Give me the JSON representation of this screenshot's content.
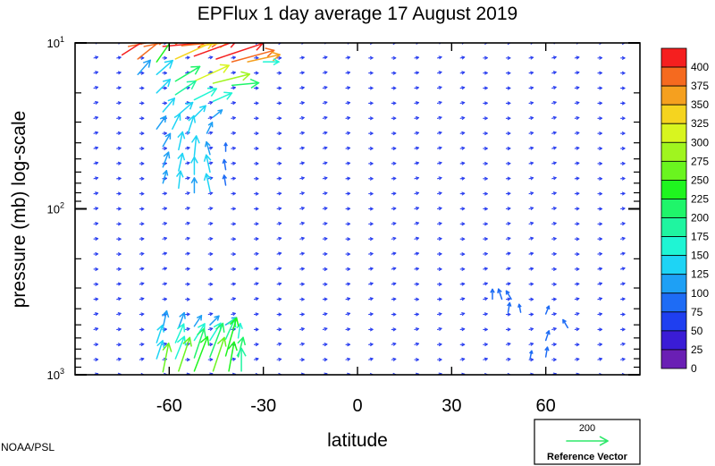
{
  "chart_data": {
    "type": "vector-field",
    "title": "EPFlux  1 day average  17 August    2019",
    "xlabel": "latitude",
    "ylabel": "pressure (mb)  log-scale",
    "x_ticks": [
      {
        "value": -60,
        "label": "-60"
      },
      {
        "value": -30,
        "label": "-30"
      },
      {
        "value": 0,
        "label": "0"
      },
      {
        "value": 30,
        "label": "30"
      },
      {
        "value": 60,
        "label": "60"
      }
    ],
    "y_ticks": [
      {
        "value": 10,
        "base": "10",
        "exp": "1"
      },
      {
        "value": 100,
        "base": "10",
        "exp": "2"
      },
      {
        "value": 1000,
        "base": "10",
        "exp": "3"
      }
    ],
    "xlim": [
      -90,
      90
    ],
    "ylim": [
      1000,
      10
    ],
    "y_scale": "log",
    "colorbar": {
      "levels": [
        0,
        25,
        50,
        75,
        100,
        125,
        150,
        175,
        200,
        225,
        250,
        275,
        300,
        325,
        350,
        375,
        400
      ],
      "labels": [
        "400",
        "375",
        "350",
        "325",
        "300",
        "275",
        "250",
        "225",
        "200",
        "175",
        "150",
        "125",
        "100",
        "75",
        "50",
        "25",
        "0"
      ],
      "colors": [
        "#6a1fb4",
        "#3a1cd6",
        "#1f3ff0",
        "#1e6cf5",
        "#1ea0f5",
        "#1ed4f5",
        "#1ff5d4",
        "#1ff5a0",
        "#1ff56a",
        "#1ff51f",
        "#6af51f",
        "#a0f51f",
        "#d8f51f",
        "#f5d41f",
        "#f5a01f",
        "#f56a1f",
        "#f51f1f"
      ]
    },
    "reference_vector": {
      "magnitude": "200",
      "label": "Reference Vector",
      "color": "#2ee86a"
    },
    "credit": "NOAA/PSL",
    "vectors": [
      {
        "lat": -73,
        "p": 10.5,
        "u": 0.5,
        "v": 0.1,
        "mag": 390
      },
      {
        "lat": -68,
        "p": 10.5,
        "u": 0.5,
        "v": 0.1,
        "mag": 395
      },
      {
        "lat": -62,
        "p": 10.5,
        "u": 0.55,
        "v": 0.05,
        "mag": 400
      },
      {
        "lat": -56,
        "p": 10.4,
        "u": 0.5,
        "v": 0.05,
        "mag": 385
      },
      {
        "lat": -50,
        "p": 10.4,
        "u": 0.4,
        "v": 0.05,
        "mag": 330
      },
      {
        "lat": -75,
        "p": 11.8,
        "u": 0.55,
        "v": 0.35,
        "mag": 400
      },
      {
        "lat": -70,
        "p": 12.5,
        "u": 0.5,
        "v": 0.4,
        "mag": 380
      },
      {
        "lat": -64,
        "p": 13.0,
        "u": 0.35,
        "v": 0.5,
        "mag": 240
      },
      {
        "lat": -58,
        "p": 12.5,
        "u": 0.55,
        "v": 0.25,
        "mag": 345
      },
      {
        "lat": -52,
        "p": 12.0,
        "u": 0.55,
        "v": 0.2,
        "mag": 400
      },
      {
        "lat": -45,
        "p": 12.5,
        "u": 0.6,
        "v": 0.2,
        "mag": 400
      },
      {
        "lat": -40,
        "p": 13.0,
        "u": 0.55,
        "v": 0.15,
        "mag": 395
      },
      {
        "lat": -35,
        "p": 13.0,
        "u": 0.45,
        "v": 0.1,
        "mag": 360
      },
      {
        "lat": -30,
        "p": 13.0,
        "u": 0.35,
        "v": 0.0,
        "mag": 170
      },
      {
        "lat": -70,
        "p": 15.5,
        "u": 0.35,
        "v": 0.4,
        "mag": 110
      },
      {
        "lat": -64,
        "p": 15.5,
        "u": 0.4,
        "v": 0.35,
        "mag": 140
      },
      {
        "lat": -58,
        "p": 17.0,
        "u": 0.5,
        "v": 0.3,
        "mag": 200
      },
      {
        "lat": -52,
        "p": 17.0,
        "u": 0.55,
        "v": 0.25,
        "mag": 300
      },
      {
        "lat": -46,
        "p": 17.5,
        "u": 0.6,
        "v": 0.15,
        "mag": 285
      },
      {
        "lat": -40,
        "p": 18.0,
        "u": 0.55,
        "v": 0.05,
        "mag": 200
      },
      {
        "lat": -64,
        "p": 20.0,
        "u": 0.35,
        "v": 0.35,
        "mag": 130
      },
      {
        "lat": -58,
        "p": 20.5,
        "u": 0.45,
        "v": 0.3,
        "mag": 175
      },
      {
        "lat": -52,
        "p": 22.0,
        "u": 0.5,
        "v": 0.25,
        "mag": 170
      },
      {
        "lat": -46,
        "p": 22.5,
        "u": 0.45,
        "v": 0.2,
        "mag": 150
      },
      {
        "lat": -62,
        "p": 26.0,
        "u": 0.3,
        "v": 0.35,
        "mag": 130
      },
      {
        "lat": -57,
        "p": 27.0,
        "u": 0.35,
        "v": 0.3,
        "mag": 140
      },
      {
        "lat": -52,
        "p": 28.0,
        "u": 0.3,
        "v": 0.3,
        "mag": 125
      },
      {
        "lat": -46,
        "p": 28.0,
        "u": 0.25,
        "v": 0.2,
        "mag": 110
      },
      {
        "lat": -64,
        "p": 33.0,
        "u": 0.25,
        "v": 0.35,
        "mag": 115
      },
      {
        "lat": -59,
        "p": 33.0,
        "u": 0.2,
        "v": 0.4,
        "mag": 125
      },
      {
        "lat": -54,
        "p": 35.0,
        "u": 0.15,
        "v": 0.45,
        "mag": 130
      },
      {
        "lat": -48,
        "p": 35.0,
        "u": 0.15,
        "v": 0.3,
        "mag": 110
      },
      {
        "lat": -62,
        "p": 42.0,
        "u": 0.2,
        "v": 0.35,
        "mag": 115
      },
      {
        "lat": -57,
        "p": 44.0,
        "u": 0.1,
        "v": 0.45,
        "mag": 135
      },
      {
        "lat": -52,
        "p": 48.0,
        "u": 0.05,
        "v": 0.5,
        "mag": 140
      },
      {
        "lat": -47,
        "p": 47.0,
        "u": -0.1,
        "v": 0.35,
        "mag": 110
      },
      {
        "lat": -42,
        "p": 45.0,
        "u": 0.0,
        "v": 0.25,
        "mag": 90
      },
      {
        "lat": -62,
        "p": 56.0,
        "u": 0.15,
        "v": 0.4,
        "mag": 120
      },
      {
        "lat": -57,
        "p": 59.0,
        "u": 0.1,
        "v": 0.45,
        "mag": 130
      },
      {
        "lat": -52,
        "p": 62.0,
        "u": 0.0,
        "v": 0.45,
        "mag": 130
      },
      {
        "lat": -47,
        "p": 60.0,
        "u": -0.1,
        "v": 0.45,
        "mag": 125
      },
      {
        "lat": -42,
        "p": 58.0,
        "u": -0.05,
        "v": 0.3,
        "mag": 90
      },
      {
        "lat": -62,
        "p": 70.0,
        "u": 0.1,
        "v": 0.35,
        "mag": 110
      },
      {
        "lat": -57,
        "p": 75.0,
        "u": 0.05,
        "v": 0.45,
        "mag": 125
      },
      {
        "lat": -52,
        "p": 80.0,
        "u": 0.0,
        "v": 0.4,
        "mag": 120
      },
      {
        "lat": -47,
        "p": 78.0,
        "u": -0.1,
        "v": 0.45,
        "mag": 125
      },
      {
        "lat": -42,
        "p": 72.0,
        "u": -0.05,
        "v": 0.3,
        "mag": 90
      },
      {
        "lat": -62,
        "p": 520.0,
        "u": 0.1,
        "v": 0.45,
        "mag": 120
      },
      {
        "lat": -57,
        "p": 520.0,
        "u": 0.15,
        "v": 0.4,
        "mag": 120
      },
      {
        "lat": -52,
        "p": 510.0,
        "u": 0.2,
        "v": 0.3,
        "mag": 110
      },
      {
        "lat": -47,
        "p": 500.0,
        "u": 0.25,
        "v": 0.25,
        "mag": 110
      },
      {
        "lat": -42,
        "p": 500.0,
        "u": 0.3,
        "v": 0.2,
        "mag": 110
      },
      {
        "lat": -64,
        "p": 640.0,
        "u": 0.15,
        "v": 0.45,
        "mag": 130
      },
      {
        "lat": -58,
        "p": 640.0,
        "u": 0.2,
        "v": 0.45,
        "mag": 150
      },
      {
        "lat": -52,
        "p": 620.0,
        "u": 0.25,
        "v": 0.4,
        "mag": 150
      },
      {
        "lat": -47,
        "p": 620.0,
        "u": 0.25,
        "v": 0.4,
        "mag": 160
      },
      {
        "lat": -42,
        "p": 610.0,
        "u": 0.2,
        "v": 0.45,
        "mag": 180
      },
      {
        "lat": -38,
        "p": 600.0,
        "u": 0.05,
        "v": 0.35,
        "mag": 150
      },
      {
        "lat": -64,
        "p": 800.0,
        "u": 0.15,
        "v": 0.45,
        "mag": 140
      },
      {
        "lat": -58,
        "p": 800.0,
        "u": 0.2,
        "v": 0.5,
        "mag": 170
      },
      {
        "lat": -52,
        "p": 790.0,
        "u": 0.2,
        "v": 0.6,
        "mag": 200
      },
      {
        "lat": -47,
        "p": 780.0,
        "u": 0.25,
        "v": 0.65,
        "mag": 220
      },
      {
        "lat": -42,
        "p": 770.0,
        "u": 0.2,
        "v": 0.7,
        "mag": 240
      },
      {
        "lat": -38,
        "p": 780.0,
        "u": 0.1,
        "v": 0.4,
        "mag": 200
      },
      {
        "lat": -62,
        "p": 960.0,
        "u": 0.1,
        "v": 0.5,
        "mag": 260
      },
      {
        "lat": -57,
        "p": 950.0,
        "u": 0.2,
        "v": 0.6,
        "mag": 250
      },
      {
        "lat": -52,
        "p": 950.0,
        "u": 0.25,
        "v": 0.65,
        "mag": 230
      },
      {
        "lat": -46,
        "p": 950.0,
        "u": 0.2,
        "v": 0.6,
        "mag": 250
      },
      {
        "lat": -41,
        "p": 950.0,
        "u": 0.1,
        "v": 0.55,
        "mag": 230
      },
      {
        "lat": -37,
        "p": 950.0,
        "u": 0.0,
        "v": 0.5,
        "mag": 180
      },
      {
        "lat": 43,
        "p": 350.0,
        "u": 0.0,
        "v": 0.3,
        "mag": 90
      },
      {
        "lat": 46,
        "p": 350.0,
        "u": -0.1,
        "v": 0.3,
        "mag": 95
      },
      {
        "lat": 49,
        "p": 350.0,
        "u": -0.15,
        "v": 0.25,
        "mag": 90
      },
      {
        "lat": 48,
        "p": 420.0,
        "u": 0.05,
        "v": 0.3,
        "mag": 80
      },
      {
        "lat": 52,
        "p": 420.0,
        "u": -0.05,
        "v": 0.25,
        "mag": 80
      },
      {
        "lat": 60,
        "p": 430.0,
        "u": 0.1,
        "v": 0.25,
        "mag": 80
      },
      {
        "lat": 60,
        "p": 620.0,
        "u": 0.1,
        "v": 0.3,
        "mag": 80
      },
      {
        "lat": 67,
        "p": 520.0,
        "u": -0.15,
        "v": 0.25,
        "mag": 80
      },
      {
        "lat": 60,
        "p": 780.0,
        "u": 0.05,
        "v": 0.3,
        "mag": 85
      },
      {
        "lat": 55,
        "p": 800.0,
        "u": 0.05,
        "v": 0.25,
        "mag": 80
      }
    ]
  }
}
